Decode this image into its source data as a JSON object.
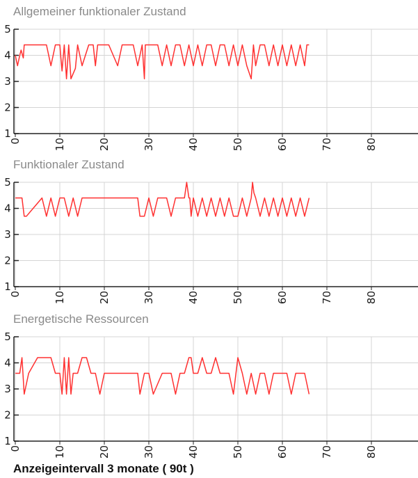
{
  "footer": {
    "interval_label": "Anzeigeintervall 3 monate ( 90t )"
  },
  "colors": {
    "line": "#ff3030",
    "grid": "#d4d4d4",
    "axis": "#222222",
    "title": "#8a8a8a"
  },
  "chart_data": [
    {
      "type": "line",
      "title": "Allgemeiner funktionaler Zustand",
      "xlim": [
        0,
        90
      ],
      "ylim": [
        1,
        5
      ],
      "xticks": [
        0,
        10,
        20,
        30,
        40,
        50,
        60,
        70,
        80
      ],
      "yticks": [
        1,
        2,
        3,
        4,
        5
      ],
      "grid": true,
      "series": [
        {
          "x": [
            0,
            0.5,
            1,
            1.3,
            1.8,
            2,
            2.3,
            3.5,
            7,
            8,
            9,
            10,
            10.5,
            11,
            11.5,
            12,
            12.5,
            13.5,
            14,
            15,
            16.5,
            17,
            17.5,
            18,
            18.5,
            19,
            20,
            21,
            23,
            24,
            25.5,
            26.5,
            27.5,
            28.5,
            29,
            29.2,
            29.5,
            32,
            33,
            34,
            35,
            36,
            37,
            38,
            39,
            40,
            41,
            42,
            43,
            44,
            45,
            46,
            47,
            48,
            49,
            50,
            51,
            52,
            53,
            53.5,
            54,
            55,
            56,
            57,
            58,
            59,
            60,
            61,
            62,
            63,
            64,
            65,
            65.5,
            66
          ],
          "y": [
            4,
            3.6,
            4,
            4.2,
            3.9,
            4.4,
            4.4,
            4.4,
            4.4,
            3.6,
            4.4,
            4.4,
            3.4,
            4.4,
            3.1,
            4.4,
            3.1,
            3.5,
            4.4,
            3.6,
            4.4,
            4.4,
            4.4,
            3.6,
            4.4,
            4.4,
            4.4,
            4.4,
            3.6,
            4.4,
            4.4,
            4.4,
            3.6,
            4.4,
            3.1,
            4.4,
            4.4,
            4.4,
            3.6,
            4.4,
            3.6,
            4.4,
            4.4,
            3.6,
            4.4,
            3.6,
            4.4,
            3.6,
            4.4,
            4.4,
            3.6,
            4.4,
            4.4,
            3.6,
            4.4,
            3.6,
            4.4,
            3.6,
            3.1,
            4.4,
            3.6,
            4.4,
            4.4,
            3.6,
            4.4,
            3.6,
            4.4,
            3.6,
            4.4,
            3.6,
            4.4,
            3.6,
            4.4,
            4.4
          ]
        }
      ]
    },
    {
      "type": "line",
      "title": "Funktionaler Zustand",
      "xlim": [
        0,
        90
      ],
      "ylim": [
        1,
        5
      ],
      "xticks": [
        0,
        10,
        20,
        30,
        40,
        50,
        60,
        70,
        80
      ],
      "yticks": [
        1,
        2,
        3,
        4,
        5
      ],
      "grid": true,
      "series": [
        {
          "x": [
            0,
            1.5,
            2,
            2.5,
            4,
            6,
            7,
            8,
            9,
            10,
            11,
            12,
            13,
            14,
            15,
            16,
            17,
            18,
            19,
            20,
            21,
            22,
            23,
            24,
            25,
            26,
            27.5,
            28,
            29,
            30,
            31,
            32,
            33,
            34,
            35,
            36,
            37,
            38,
            38.5,
            39,
            39.2,
            39.5,
            40,
            41,
            42,
            43,
            44,
            45,
            46,
            47,
            48,
            49,
            50,
            51,
            52,
            53,
            53.3,
            53.6,
            54,
            55,
            56,
            57,
            58,
            59,
            60,
            61,
            62,
            63,
            64,
            65,
            66
          ],
          "y": [
            4.4,
            4.4,
            3.7,
            3.7,
            4.0,
            4.4,
            3.7,
            4.4,
            3.7,
            4.4,
            4.4,
            3.7,
            4.4,
            3.7,
            4.4,
            4.4,
            4.4,
            4.4,
            4.4,
            4.4,
            4.4,
            4.4,
            4.4,
            4.4,
            4.4,
            4.4,
            4.4,
            3.7,
            3.7,
            4.4,
            3.7,
            4.4,
            4.4,
            4.4,
            3.7,
            4.4,
            4.4,
            4.4,
            5.0,
            4.4,
            4.4,
            3.7,
            4.4,
            3.7,
            4.4,
            3.7,
            4.4,
            3.7,
            4.4,
            3.7,
            4.4,
            3.7,
            3.7,
            4.4,
            3.7,
            4.4,
            5.0,
            4.6,
            4.4,
            3.7,
            4.4,
            3.7,
            4.4,
            3.7,
            4.4,
            3.7,
            4.4,
            3.7,
            4.4,
            3.7,
            4.4
          ]
        }
      ]
    },
    {
      "type": "line",
      "title": "Energetische Ressourcen",
      "xlim": [
        0,
        90
      ],
      "ylim": [
        1,
        5
      ],
      "xticks": [
        0,
        10,
        20,
        30,
        40,
        50,
        60,
        70,
        80
      ],
      "yticks": [
        1,
        2,
        3,
        4,
        5
      ],
      "grid": true,
      "series": [
        {
          "x": [
            0,
            1,
            1.5,
            2,
            3,
            4,
            5,
            7,
            8,
            9,
            10,
            10.5,
            11,
            11.5,
            12,
            12.5,
            13,
            14,
            15,
            16,
            17,
            18,
            19,
            20,
            25,
            27.5,
            28,
            29,
            30,
            31,
            33,
            34,
            35,
            36,
            37,
            38,
            39,
            39.5,
            40,
            41,
            42,
            43,
            44,
            45,
            46,
            47,
            48,
            49,
            50,
            51,
            52,
            53,
            54,
            55,
            56,
            57,
            58,
            59,
            60,
            61,
            62,
            63,
            64,
            65,
            66
          ],
          "y": [
            3.6,
            3.6,
            4.2,
            2.8,
            3.6,
            3.9,
            4.2,
            4.2,
            4.2,
            3.6,
            3.6,
            2.8,
            4.2,
            2.8,
            4.2,
            2.8,
            3.6,
            3.6,
            4.2,
            4.2,
            3.6,
            3.6,
            2.8,
            3.6,
            3.6,
            3.6,
            2.8,
            3.6,
            3.6,
            2.8,
            3.6,
            3.6,
            3.6,
            2.8,
            3.6,
            3.6,
            4.2,
            4.2,
            3.6,
            3.6,
            4.2,
            3.6,
            3.6,
            4.2,
            3.6,
            3.6,
            3.6,
            2.8,
            4.2,
            3.6,
            2.8,
            3.6,
            2.8,
            3.6,
            3.6,
            2.8,
            3.6,
            3.6,
            3.6,
            3.6,
            2.8,
            3.6,
            3.6,
            3.6,
            2.8
          ]
        }
      ]
    }
  ]
}
